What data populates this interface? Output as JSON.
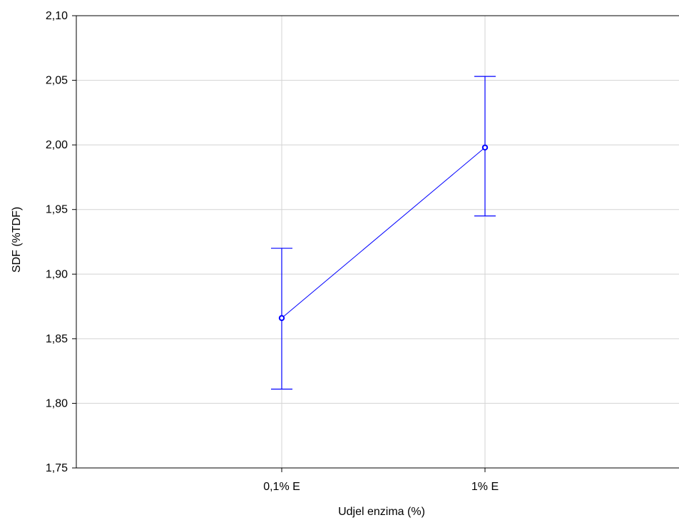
{
  "chart_data": {
    "type": "line",
    "title": "",
    "xlabel": "Udjel enzima (%)",
    "ylabel": "SDF  (%TDF)",
    "categories": [
      "0,1% E",
      "1% E"
    ],
    "series": [
      {
        "values": [
          1.866,
          1.998
        ],
        "error_low": [
          1.811,
          1.945
        ],
        "error_high": [
          1.92,
          2.053
        ],
        "color": "#0000ff"
      }
    ],
    "ylim": [
      1.75,
      2.1
    ],
    "yticks": [
      1.75,
      1.8,
      1.85,
      1.9,
      1.95,
      2.0,
      2.05,
      2.1
    ],
    "ytick_labels": [
      "1,75",
      "1,80",
      "1,85",
      "1,90",
      "1,95",
      "2,00",
      "2,05",
      "2,10"
    ],
    "grid": true,
    "grid_color": "#d3d3d3",
    "axis_color": "#000000"
  }
}
